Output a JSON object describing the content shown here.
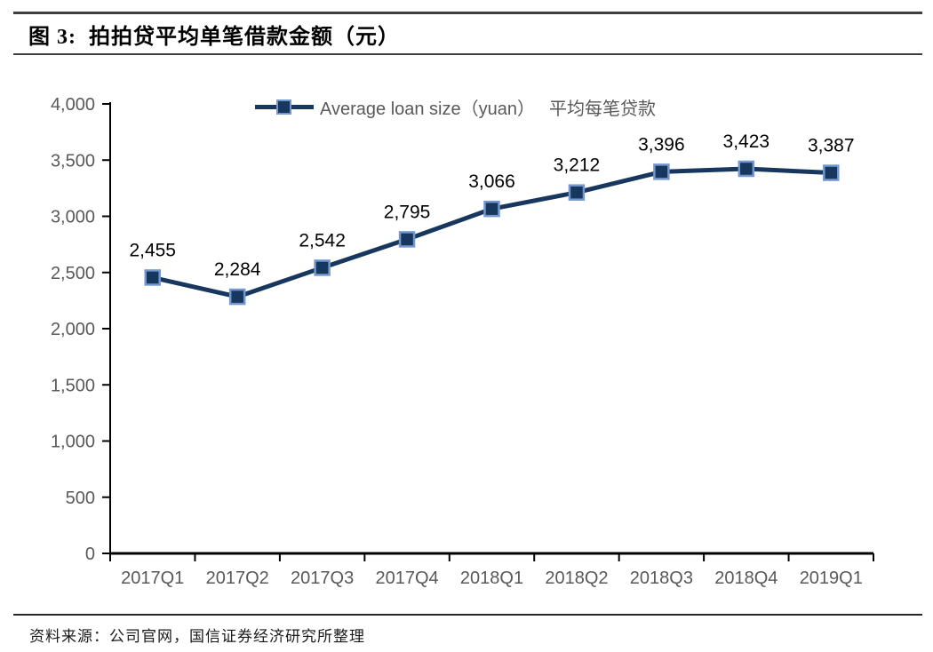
{
  "header": {
    "title": "图 3:  拍拍贷平均单笔借款金额（元）"
  },
  "legend": {
    "marker": "navy-square-on-line",
    "label_en": "Average loan size（yuan）",
    "label_zh": "平均每笔贷款"
  },
  "footer": {
    "source": "资料来源：公司官网，国信证券经济研究所整理"
  },
  "colors": {
    "line": "#17375E",
    "marker_fill": "#17375E",
    "marker_border": "#7498CE",
    "axis": "#000000",
    "tick_label": "#595959",
    "data_label": "#000000",
    "rule": "#3f3f3f"
  },
  "chart_data": {
    "type": "line",
    "title": "拍拍贷平均单笔借款金额（元）",
    "categories": [
      "2017Q1",
      "2017Q2",
      "2017Q3",
      "2017Q4",
      "2018Q1",
      "2018Q2",
      "2018Q3",
      "2018Q4",
      "2019Q1"
    ],
    "series": [
      {
        "name": "Average loan size（yuan）平均每笔贷款",
        "values": [
          2455,
          2284,
          2542,
          2795,
          3066,
          3212,
          3396,
          3423,
          3387
        ],
        "labels": [
          "2,455",
          "2,284",
          "2,542",
          "2,795",
          "3,066",
          "3,212",
          "3,396",
          "3,423",
          "3,387"
        ]
      }
    ],
    "xlabel": "",
    "ylabel": "",
    "ylim": [
      0,
      4000
    ],
    "y_tick_step": 500,
    "y_tick_labels": [
      "0",
      "500",
      "1,000",
      "1,500",
      "2,000",
      "2,500",
      "3,000",
      "3,500",
      "4,000"
    ],
    "grid": false,
    "legend_position": "top-center",
    "marker": "square"
  }
}
